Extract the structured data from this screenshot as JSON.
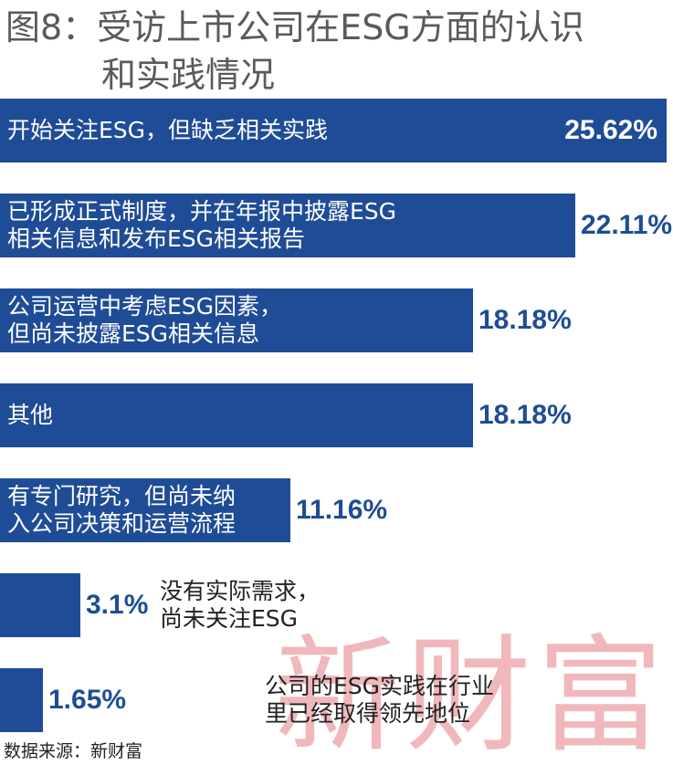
{
  "header": {
    "title_line1": "图8：受访上市公司在ESG方面的认识",
    "title_line2": "和实践情况"
  },
  "watermark": "新财富",
  "source": "数据来源：新财富",
  "colors": {
    "bar": "#1f4c96",
    "title": "#5a5a5a",
    "watermark": "#f0b8bc"
  },
  "chart_data": {
    "type": "bar",
    "orientation": "horizontal",
    "title": "受访上市公司在ESG方面的认识和实践情况",
    "categories": [
      "开始关注ESG，但缺乏相关实践",
      "已形成正式制度，并在年报中披露ESG\n相关信息和发布ESG相关报告",
      "公司运营中考虑ESG因素，\n但尚未披露ESG相关信息",
      "其他",
      "有专门研究，但尚未纳\n入公司决策和运营流程",
      "没有实际需求，\n尚未关注ESG",
      "公司的ESG实践在行业\n里已经取得领先地位"
    ],
    "values": [
      25.62,
      22.11,
      18.18,
      18.18,
      11.16,
      3.1,
      1.65
    ],
    "value_labels": [
      "25.62%",
      "22.11%",
      "18.18%",
      "18.18%",
      "11.16%",
      "3.1%",
      "1.65%"
    ],
    "unit": "%",
    "xlim": [
      0,
      25.62
    ],
    "grid": false,
    "legend": "none"
  }
}
